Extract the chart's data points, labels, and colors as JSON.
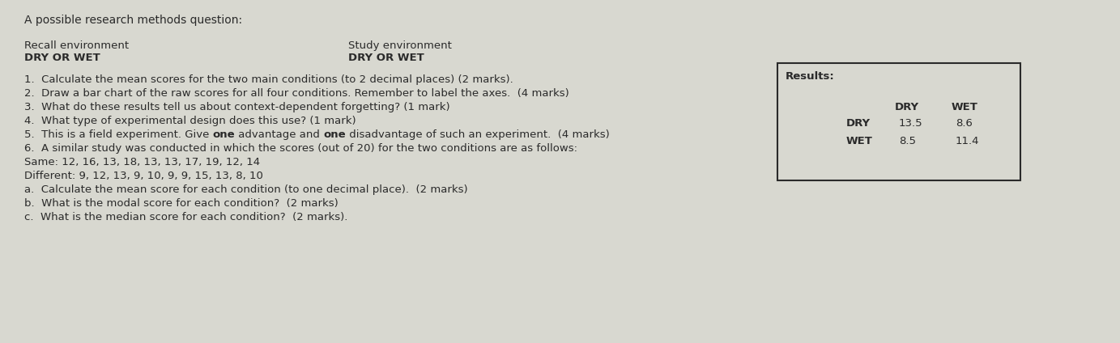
{
  "background_color": "#d8d8d0",
  "title_text": "A possible research methods question:",
  "title_fontsize": 10,
  "recall_label": "Recall environment",
  "recall_sub": "DRY OR WET",
  "study_label": "Study environment",
  "study_sub": "DRY OR WET",
  "questions": [
    "1.  Calculate the mean scores for the two main conditions (to 2 decimal places) (2 marks).",
    "2.  Draw a bar chart of the raw scores for all four conditions. Remember to label the axes.  (4 marks)",
    "3.  What do these results tell us about context-dependent forgetting? (1 mark)",
    "4.  What type of experimental design does this use? (1 mark)",
    "5.  This is a field experiment. Give one advantage and one disadvantage of such an experiment.  (4 marks)",
    "6.  A similar study was conducted in which the scores (out of 20) for the two conditions are as follows:",
    "Same: 12, 16, 13, 18, 13, 13, 17, 19, 12, 14",
    "Different: 9, 12, 13, 9, 10, 9, 9, 15, 13, 8, 10",
    "a.  Calculate the mean score for each condition (to one decimal place).  (2 marks)",
    "b.  What is the modal score for each condition?  (2 marks)",
    "c.  What is the median score for each condition?  (2 marks)."
  ],
  "bold_words_q5": [
    "one",
    "one"
  ],
  "results_title": "Results:",
  "table_col_headers": [
    "DRY",
    "WET"
  ],
  "table_row_headers": [
    "DRY",
    "WET"
  ],
  "table_data": [
    [
      13.5,
      8.6
    ],
    [
      8.5,
      11.4
    ]
  ],
  "text_color": "#2a2a2a",
  "table_box_color": "#2a2a2a",
  "font_size_body": 9.5,
  "font_size_small": 9
}
